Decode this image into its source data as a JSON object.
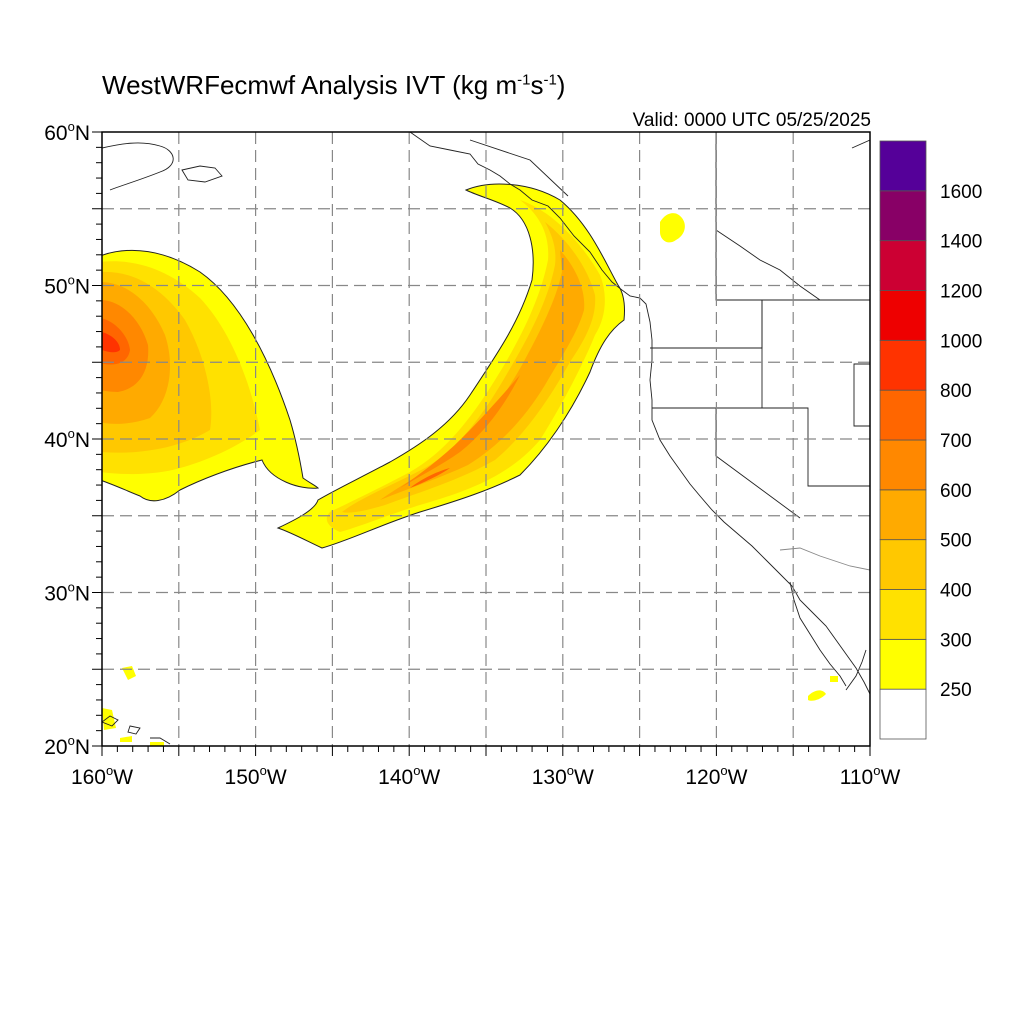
{
  "title": {
    "main": "WestWRFecmwf Analysis IVT (kg m",
    "exp1": "-1",
    "mid": "s",
    "exp2": "-1",
    "end": ")"
  },
  "valid": "Valid: 0000 UTC 05/25/2025",
  "map": {
    "lon_range": [
      -160,
      -110
    ],
    "lat_range": [
      20,
      60
    ],
    "lon_ticks": [
      {
        "value": -160,
        "num": "160",
        "deg": "o",
        "hem": "W"
      },
      {
        "value": -150,
        "num": "150",
        "deg": "o",
        "hem": "W"
      },
      {
        "value": -140,
        "num": "140",
        "deg": "o",
        "hem": "W"
      },
      {
        "value": -130,
        "num": "130",
        "deg": "o",
        "hem": "W"
      },
      {
        "value": -120,
        "num": "120",
        "deg": "o",
        "hem": "W"
      },
      {
        "value": -110,
        "num": "110",
        "deg": "o",
        "hem": "W"
      }
    ],
    "lat_ticks": [
      {
        "value": 60,
        "num": "60",
        "deg": "o",
        "hem": "N"
      },
      {
        "value": 50,
        "num": "50",
        "deg": "o",
        "hem": "N"
      },
      {
        "value": 40,
        "num": "40",
        "deg": "o",
        "hem": "N"
      },
      {
        "value": 30,
        "num": "30",
        "deg": "o",
        "hem": "N"
      },
      {
        "value": 20,
        "num": "20",
        "deg": "o",
        "hem": "N"
      }
    ],
    "grid": "dashed, every 5 degrees"
  },
  "colorbar": {
    "colors": [
      "#ffffff",
      "#ffff00",
      "#ffe100",
      "#ffc800",
      "#ffaa00",
      "#ff8800",
      "#ff6600",
      "#ff3300",
      "#ee0000",
      "#cc0033",
      "#880066",
      "#550099"
    ],
    "labels": [
      "250",
      "300",
      "400",
      "500",
      "600",
      "700",
      "800",
      "1000",
      "1200",
      "1400",
      "1600"
    ]
  }
}
